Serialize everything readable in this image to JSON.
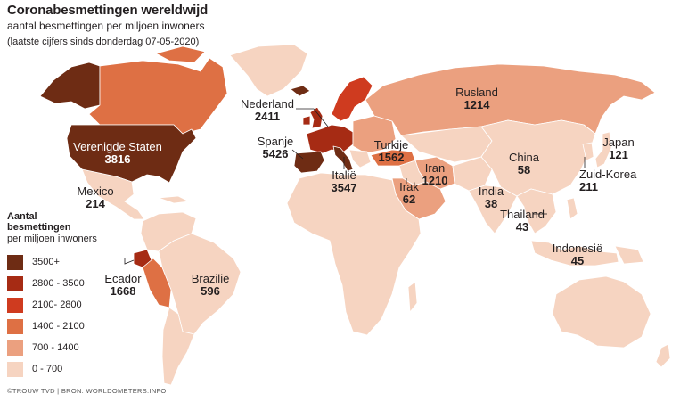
{
  "title": "Coronabesmettingen wereldwijd",
  "subtitle": "aantal besmettingen per miljoen inwoners",
  "note": "(laatste cijfers sinds donderdag 07-05-2020)",
  "source": "©TROUW TVD | BRON: WORLDOMETERS.INFO",
  "legend": {
    "title_line1": "Aantal",
    "title_line2": "besmettingen",
    "subtitle": "per miljoen inwoners",
    "items": [
      {
        "label": "3500+",
        "color": "#6e2c14"
      },
      {
        "label": "2800 - 3500",
        "color": "#a62b14"
      },
      {
        "label": "2100- 2800",
        "color": "#cf3b1f"
      },
      {
        "label": "1400 - 2100",
        "color": "#de7044"
      },
      {
        "label": "700 - 1400",
        "color": "#eba07f"
      },
      {
        "label": "0 - 700",
        "color": "#f6d4c1"
      }
    ]
  },
  "countries": [
    {
      "id": "usa",
      "name": "Verenigde Staten",
      "value": "3816"
    },
    {
      "id": "mexico",
      "name": "Mexico",
      "value": "214"
    },
    {
      "id": "ecuador",
      "name": "Ecador",
      "value": "1668"
    },
    {
      "id": "brazil",
      "name": "Brazilië",
      "value": "596"
    },
    {
      "id": "netherlands",
      "name": "Nederland",
      "value": "2411"
    },
    {
      "id": "spain",
      "name": "Spanje",
      "value": "5426"
    },
    {
      "id": "italy",
      "name": "Italië",
      "value": "3547"
    },
    {
      "id": "turkey",
      "name": "Turkije",
      "value": "1562"
    },
    {
      "id": "russia",
      "name": "Rusland",
      "value": "1214"
    },
    {
      "id": "iran",
      "name": "Iran",
      "value": "1210"
    },
    {
      "id": "iraq",
      "name": "Irak",
      "value": "62"
    },
    {
      "id": "china",
      "name": "China",
      "value": "58"
    },
    {
      "id": "india",
      "name": "India",
      "value": "38"
    },
    {
      "id": "thailand",
      "name": "Thailand",
      "value": "43"
    },
    {
      "id": "japan",
      "name": "Japan",
      "value": "121"
    },
    {
      "id": "south-korea",
      "name": "Zuid-Korea",
      "value": "211"
    },
    {
      "id": "indonesia",
      "name": "Indonesië",
      "value": "45"
    }
  ]
}
